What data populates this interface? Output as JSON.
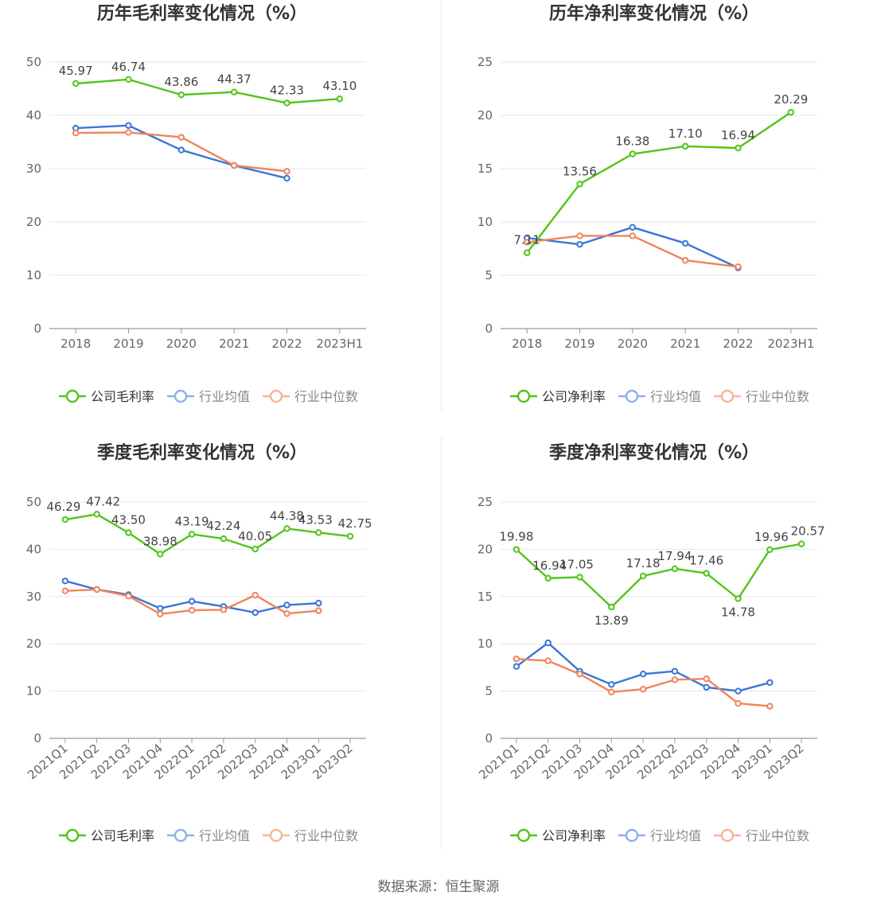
{
  "source": "数据来源：恒生聚源",
  "colors": {
    "company": "#52c41a",
    "avg": "#3a75d8",
    "median": "#f0845a"
  },
  "chart_data": [
    {
      "type": "line",
      "title": "历年毛利率变化情况（%）",
      "categories": [
        "2018",
        "2019",
        "2020",
        "2021",
        "2022",
        "2023H1"
      ],
      "ylim": [
        0,
        50
      ],
      "yticks": [
        0,
        10,
        20,
        30,
        40,
        50
      ],
      "legend": "bottom",
      "series": [
        {
          "name": "公司毛利率",
          "values": [
            45.97,
            46.74,
            43.86,
            44.37,
            42.33,
            43.1
          ],
          "labels": [
            "45.97",
            "46.74",
            "43.86",
            "44.37",
            "42.33",
            "43.10"
          ]
        },
        {
          "name": "行业均值",
          "values": [
            37.6,
            38.1,
            33.5,
            30.6,
            28.2,
            null
          ]
        },
        {
          "name": "行业中位数",
          "values": [
            36.7,
            36.8,
            35.9,
            30.6,
            29.5,
            null
          ]
        }
      ]
    },
    {
      "type": "line",
      "title": "历年净利率变化情况（%）",
      "categories": [
        "2018",
        "2019",
        "2020",
        "2021",
        "2022",
        "2023H1"
      ],
      "ylim": [
        0,
        25
      ],
      "yticks": [
        0,
        5,
        10,
        15,
        20,
        25
      ],
      "legend": "bottom",
      "series": [
        {
          "name": "公司净利率",
          "values": [
            7.11,
            13.56,
            16.38,
            17.1,
            16.94,
            20.29
          ],
          "labels": [
            "7.11",
            "13.56",
            "16.38",
            "17.10",
            "16.94",
            "20.29"
          ]
        },
        {
          "name": "行业均值",
          "values": [
            8.5,
            7.9,
            9.5,
            8.0,
            5.7,
            null
          ]
        },
        {
          "name": "行业中位数",
          "values": [
            8.1,
            8.7,
            8.7,
            6.4,
            5.8,
            null
          ]
        }
      ]
    },
    {
      "type": "line",
      "title": "季度毛利率变化情况（%）",
      "categories": [
        "2021Q1",
        "2021Q2",
        "2021Q3",
        "2021Q4",
        "2022Q1",
        "2022Q2",
        "2022Q3",
        "2022Q4",
        "2023Q1",
        "2023Q2"
      ],
      "ylim": [
        0,
        50
      ],
      "yticks": [
        0,
        10,
        20,
        30,
        40,
        50
      ],
      "legend": "bottom",
      "series": [
        {
          "name": "公司毛利率",
          "values": [
            46.29,
            47.42,
            43.5,
            38.98,
            43.19,
            42.24,
            40.05,
            44.38,
            43.53,
            42.75
          ],
          "labels": [
            "46.29",
            "47.42",
            "43.50",
            "38.98",
            "43.19",
            "42.24",
            "40.05",
            "44.38",
            "43.53",
            "42.75"
          ]
        },
        {
          "name": "行业均值",
          "values": [
            33.3,
            31.5,
            30.4,
            27.5,
            29.0,
            27.9,
            26.6,
            28.2,
            28.6,
            null
          ]
        },
        {
          "name": "行业中位数",
          "values": [
            31.2,
            31.5,
            30.1,
            26.3,
            27.1,
            27.2,
            30.3,
            26.4,
            27.0,
            null
          ]
        }
      ]
    },
    {
      "type": "line",
      "title": "季度净利率变化情况（%）",
      "categories": [
        "2021Q1",
        "2021Q2",
        "2021Q3",
        "2021Q4",
        "2022Q1",
        "2022Q2",
        "2022Q3",
        "2022Q4",
        "2023Q1",
        "2023Q2"
      ],
      "ylim": [
        0,
        25
      ],
      "yticks": [
        0,
        5,
        10,
        15,
        20,
        25
      ],
      "legend": "bottom",
      "series": [
        {
          "name": "公司净利率",
          "values": [
            19.98,
            16.94,
            17.05,
            13.89,
            17.18,
            17.94,
            17.46,
            14.78,
            19.96,
            20.57
          ],
          "labels": [
            "19.98",
            "16.94",
            "17.05",
            "13.89",
            "17.18",
            "17.94",
            "17.46",
            "14.78",
            "19.96",
            "20.57"
          ]
        },
        {
          "name": "行业均值",
          "values": [
            7.6,
            10.1,
            7.1,
            5.7,
            6.8,
            7.1,
            5.4,
            5.0,
            5.9,
            null
          ]
        },
        {
          "name": "行业中位数",
          "values": [
            8.4,
            8.2,
            6.8,
            4.9,
            5.2,
            6.2,
            6.3,
            3.7,
            3.4,
            null
          ]
        }
      ]
    }
  ]
}
